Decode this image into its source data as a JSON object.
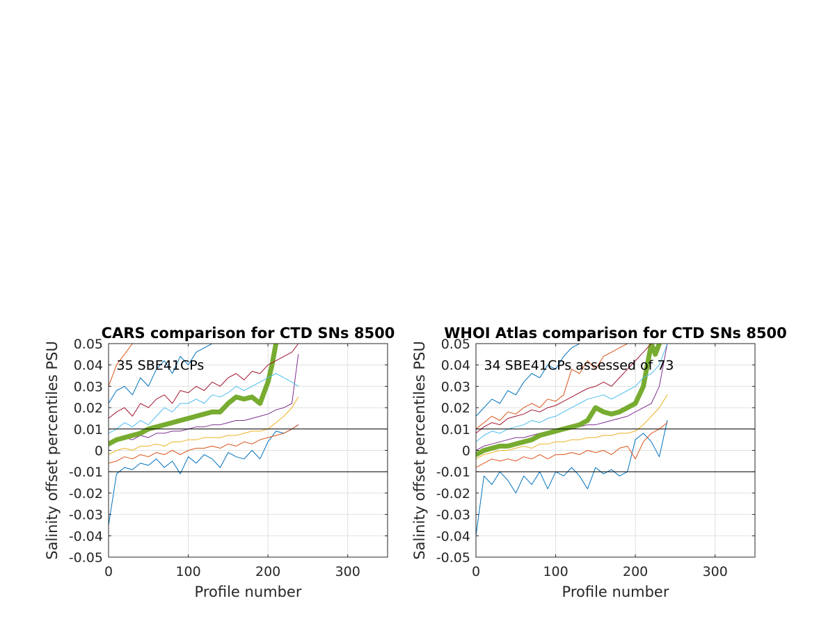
{
  "chart_data": [
    {
      "type": "line",
      "title": "CARS comparison for CTD SNs 8500",
      "xlabel": "Profile number",
      "ylabel": "Salinity offset percentiles PSU",
      "annotation": "35 SBE41CPs",
      "xlim": [
        0,
        350
      ],
      "ylim": [
        -0.05,
        0.05
      ],
      "xticks": [
        "0",
        "100",
        "200",
        "300"
      ],
      "yticks": [
        "-0.05",
        "-0.04",
        "-0.03",
        "-0.02",
        "-0.01",
        "0",
        "0.01",
        "0.02",
        "0.03",
        "0.04",
        "0.05"
      ],
      "grid": true,
      "reference_lines": [
        0.01,
        -0.01
      ],
      "series": [
        {
          "color": "#0072BD",
          "width": 1,
          "x": [
            0,
            10,
            20,
            30,
            40,
            50,
            60,
            70,
            80,
            90,
            100,
            110,
            120,
            130,
            140,
            150,
            160,
            170,
            180,
            190,
            200,
            210,
            220,
            230,
            238
          ],
          "y": [
            -0.035,
            -0.011,
            -0.008,
            -0.009,
            -0.006,
            -0.007,
            -0.004,
            -0.008,
            -0.005,
            -0.011,
            -0.003,
            -0.006,
            -0.002,
            -0.004,
            -0.008,
            -0.001,
            -0.003,
            -0.004,
            0.0,
            -0.004,
            0.004,
            0.009,
            0.008,
            0.01,
            0.012
          ]
        },
        {
          "color": "#D95319",
          "width": 1,
          "x": [
            0,
            10,
            20,
            30,
            40,
            50,
            60,
            70,
            80,
            90,
            100,
            110,
            120,
            130,
            140,
            150,
            160,
            170,
            180,
            190,
            200,
            210,
            220,
            230,
            238
          ],
          "y": [
            -0.006,
            -0.005,
            -0.003,
            -0.004,
            -0.002,
            -0.003,
            -0.001,
            -0.002,
            0.0,
            -0.002,
            0.0,
            0.001,
            0.001,
            0.002,
            0.001,
            0.003,
            0.002,
            0.004,
            0.003,
            0.005,
            0.006,
            0.007,
            0.008,
            0.01,
            0.012
          ]
        },
        {
          "color": "#EDB120",
          "width": 1,
          "x": [
            0,
            10,
            20,
            30,
            40,
            50,
            60,
            70,
            80,
            90,
            100,
            110,
            120,
            130,
            140,
            150,
            160,
            170,
            180,
            190,
            200,
            210,
            220,
            230,
            238
          ],
          "y": [
            -0.002,
            0.0,
            0.001,
            0.0,
            0.002,
            0.002,
            0.003,
            0.002,
            0.004,
            0.004,
            0.005,
            0.005,
            0.006,
            0.006,
            0.006,
            0.007,
            0.007,
            0.008,
            0.009,
            0.009,
            0.01,
            0.013,
            0.016,
            0.02,
            0.025
          ]
        },
        {
          "color": "#7E2F8E",
          "width": 1,
          "x": [
            0,
            10,
            20,
            30,
            40,
            50,
            60,
            70,
            80,
            90,
            100,
            110,
            120,
            130,
            140,
            150,
            160,
            170,
            180,
            190,
            200,
            210,
            220,
            230,
            238
          ],
          "y": [
            0.003,
            0.005,
            0.006,
            0.005,
            0.007,
            0.006,
            0.008,
            0.008,
            0.009,
            0.009,
            0.01,
            0.011,
            0.011,
            0.012,
            0.012,
            0.013,
            0.014,
            0.014,
            0.015,
            0.016,
            0.017,
            0.019,
            0.02,
            0.022,
            0.045
          ]
        },
        {
          "color": "#77AC30",
          "width": 7,
          "x": [
            0,
            10,
            20,
            30,
            40,
            50,
            60,
            70,
            80,
            90,
            100,
            110,
            120,
            130,
            140,
            150,
            160,
            170,
            180,
            190,
            200,
            205,
            210
          ],
          "y": [
            0.003,
            0.005,
            0.006,
            0.007,
            0.008,
            0.01,
            0.011,
            0.012,
            0.013,
            0.014,
            0.015,
            0.016,
            0.017,
            0.018,
            0.018,
            0.022,
            0.025,
            0.024,
            0.025,
            0.022,
            0.032,
            0.04,
            0.05
          ]
        },
        {
          "color": "#4DBEEE",
          "width": 1,
          "x": [
            0,
            10,
            20,
            30,
            40,
            50,
            60,
            70,
            80,
            90,
            100,
            110,
            120,
            130,
            140,
            150,
            160,
            170,
            180,
            190,
            200,
            210,
            220,
            230,
            238
          ],
          "y": [
            0.008,
            0.01,
            0.013,
            0.011,
            0.014,
            0.012,
            0.016,
            0.02,
            0.018,
            0.022,
            0.022,
            0.024,
            0.022,
            0.026,
            0.025,
            0.027,
            0.03,
            0.028,
            0.03,
            0.032,
            0.034,
            0.036,
            0.034,
            0.032,
            0.03
          ]
        },
        {
          "color": "#A2142F",
          "width": 1,
          "x": [
            0,
            10,
            20,
            30,
            40,
            50,
            60,
            70,
            80,
            90,
            100,
            110,
            120,
            130,
            140,
            150,
            160,
            170,
            180,
            190,
            200,
            210,
            220,
            230,
            238
          ],
          "y": [
            0.015,
            0.018,
            0.02,
            0.016,
            0.022,
            0.02,
            0.024,
            0.026,
            0.022,
            0.028,
            0.027,
            0.03,
            0.028,
            0.032,
            0.03,
            0.034,
            0.036,
            0.033,
            0.037,
            0.036,
            0.04,
            0.042,
            0.044,
            0.046,
            0.05
          ]
        },
        {
          "color": "#0072BD",
          "width": 1,
          "x": [
            0,
            10,
            20,
            30,
            40,
            50,
            60,
            70,
            80,
            90,
            100,
            110,
            120,
            130,
            140,
            150,
            160,
            170,
            180,
            190,
            200,
            210,
            220,
            230,
            238
          ],
          "y": [
            0.022,
            0.028,
            0.03,
            0.026,
            0.034,
            0.03,
            0.038,
            0.042,
            0.036,
            0.044,
            0.04,
            0.046,
            0.048,
            0.05,
            0.05,
            0.05,
            0.05,
            0.05,
            0.05,
            0.05,
            0.05,
            0.05,
            0.05,
            0.05,
            0.05
          ]
        },
        {
          "color": "#D95319",
          "width": 1,
          "x": [
            0,
            10,
            20,
            30,
            40,
            50,
            60,
            70,
            80,
            90,
            100,
            110,
            120,
            130,
            140,
            150,
            160,
            170,
            180,
            190,
            200,
            210,
            220,
            230,
            238
          ],
          "y": [
            0.03,
            0.04,
            0.045,
            0.05,
            0.05,
            0.05,
            0.05,
            0.05,
            0.05,
            0.05,
            0.05,
            0.05,
            0.05,
            0.05,
            0.05,
            0.05,
            0.05,
            0.05,
            0.05,
            0.05,
            0.05,
            0.05,
            0.05,
            0.05,
            0.05
          ]
        }
      ]
    },
    {
      "type": "line",
      "title": "WHOI Atlas comparison for CTD SNs 8500",
      "xlabel": "Profile number",
      "ylabel": "Salinity offset percentiles PSU",
      "annotation": "34 SBE41CPs assessed of 73",
      "xlim": [
        0,
        350
      ],
      "ylim": [
        -0.05,
        0.05
      ],
      "xticks": [
        "0",
        "100",
        "200",
        "300"
      ],
      "yticks": [
        "-0.05",
        "-0.04",
        "-0.03",
        "-0.02",
        "-0.01",
        "0",
        "0.01",
        "0.02",
        "0.03",
        "0.04",
        "0.05"
      ],
      "grid": true,
      "reference_lines": [
        0.01,
        -0.01
      ],
      "series": [
        {
          "color": "#0072BD",
          "width": 1,
          "x": [
            0,
            10,
            20,
            30,
            40,
            50,
            60,
            70,
            80,
            90,
            100,
            110,
            120,
            130,
            140,
            150,
            160,
            170,
            180,
            190,
            200,
            210,
            220,
            230,
            240
          ],
          "y": [
            -0.04,
            -0.012,
            -0.016,
            -0.01,
            -0.014,
            -0.02,
            -0.012,
            -0.016,
            -0.01,
            -0.018,
            -0.01,
            -0.012,
            -0.008,
            -0.012,
            -0.018,
            -0.008,
            -0.011,
            -0.009,
            -0.012,
            -0.01,
            0.005,
            0.008,
            0.004,
            -0.003,
            0.014
          ]
        },
        {
          "color": "#D95319",
          "width": 1,
          "x": [
            0,
            10,
            20,
            30,
            40,
            50,
            60,
            70,
            80,
            90,
            100,
            110,
            120,
            130,
            140,
            150,
            160,
            170,
            180,
            190,
            200,
            210,
            220,
            230,
            240
          ],
          "y": [
            -0.008,
            -0.006,
            -0.004,
            -0.005,
            -0.004,
            -0.005,
            -0.003,
            -0.004,
            -0.002,
            -0.004,
            -0.002,
            -0.002,
            -0.001,
            -0.002,
            0.0,
            -0.001,
            0.0,
            -0.002,
            0.001,
            0.002,
            -0.004,
            0.004,
            0.008,
            0.01,
            0.013
          ]
        },
        {
          "color": "#EDB120",
          "width": 1,
          "x": [
            0,
            10,
            20,
            30,
            40,
            50,
            60,
            70,
            80,
            90,
            100,
            110,
            120,
            130,
            140,
            150,
            160,
            170,
            180,
            190,
            200,
            210,
            220,
            230,
            240
          ],
          "y": [
            -0.004,
            -0.002,
            -0.001,
            0.0,
            0.0,
            0.001,
            0.002,
            0.001,
            0.003,
            0.003,
            0.004,
            0.004,
            0.005,
            0.005,
            0.006,
            0.006,
            0.007,
            0.007,
            0.008,
            0.008,
            0.009,
            0.012,
            0.016,
            0.02,
            0.026
          ]
        },
        {
          "color": "#7E2F8E",
          "width": 1,
          "x": [
            0,
            10,
            20,
            30,
            40,
            50,
            60,
            70,
            80,
            90,
            100,
            110,
            120,
            130,
            140,
            150,
            160,
            170,
            180,
            190,
            200,
            210,
            220,
            230,
            240
          ],
          "y": [
            0.0,
            0.002,
            0.003,
            0.004,
            0.005,
            0.006,
            0.006,
            0.007,
            0.008,
            0.008,
            0.009,
            0.01,
            0.01,
            0.011,
            0.012,
            0.012,
            0.013,
            0.014,
            0.015,
            0.016,
            0.018,
            0.02,
            0.022,
            0.03,
            0.05
          ]
        },
        {
          "color": "#77AC30",
          "width": 7,
          "x": [
            0,
            10,
            20,
            30,
            40,
            50,
            60,
            70,
            80,
            90,
            100,
            110,
            120,
            130,
            140,
            150,
            160,
            170,
            180,
            190,
            200,
            210,
            215,
            220,
            225,
            230
          ],
          "y": [
            -0.002,
            0.0,
            0.001,
            0.002,
            0.002,
            0.003,
            0.004,
            0.005,
            0.007,
            0.008,
            0.009,
            0.01,
            0.011,
            0.012,
            0.014,
            0.02,
            0.018,
            0.017,
            0.018,
            0.02,
            0.022,
            0.03,
            0.04,
            0.05,
            0.045,
            0.05
          ]
        },
        {
          "color": "#4DBEEE",
          "width": 1,
          "x": [
            0,
            10,
            20,
            30,
            40,
            50,
            60,
            70,
            80,
            90,
            100,
            110,
            120,
            130,
            140,
            150,
            160,
            170,
            180,
            190,
            200,
            210,
            220,
            230,
            240
          ],
          "y": [
            0.004,
            0.007,
            0.009,
            0.008,
            0.01,
            0.011,
            0.012,
            0.014,
            0.013,
            0.015,
            0.016,
            0.018,
            0.02,
            0.022,
            0.024,
            0.025,
            0.026,
            0.024,
            0.026,
            0.028,
            0.03,
            0.034,
            0.036,
            0.04,
            0.05
          ]
        },
        {
          "color": "#A2142F",
          "width": 1,
          "x": [
            0,
            10,
            20,
            30,
            40,
            50,
            60,
            70,
            80,
            90,
            100,
            110,
            120,
            130,
            140,
            150,
            160,
            170,
            180,
            190,
            200,
            210,
            220,
            230,
            240
          ],
          "y": [
            0.008,
            0.011,
            0.013,
            0.012,
            0.015,
            0.016,
            0.017,
            0.019,
            0.018,
            0.02,
            0.021,
            0.023,
            0.025,
            0.027,
            0.029,
            0.03,
            0.032,
            0.03,
            0.034,
            0.038,
            0.042,
            0.046,
            0.05,
            0.05,
            0.05
          ]
        },
        {
          "color": "#D95319",
          "width": 1,
          "x": [
            0,
            10,
            20,
            30,
            40,
            50,
            60,
            70,
            80,
            90,
            100,
            110,
            120,
            130,
            140,
            150,
            160,
            170,
            180,
            190,
            200,
            210,
            220,
            230,
            240
          ],
          "y": [
            0.01,
            0.013,
            0.016,
            0.014,
            0.018,
            0.017,
            0.02,
            0.022,
            0.02,
            0.024,
            0.023,
            0.026,
            0.038,
            0.036,
            0.042,
            0.038,
            0.044,
            0.046,
            0.048,
            0.05,
            0.05,
            0.05,
            0.05,
            0.05,
            0.05
          ]
        },
        {
          "color": "#0072BD",
          "width": 1,
          "x": [
            0,
            10,
            20,
            30,
            40,
            50,
            60,
            70,
            80,
            90,
            100,
            110,
            120,
            130,
            140,
            150,
            160,
            170,
            180,
            190,
            200,
            210,
            220,
            230,
            240
          ],
          "y": [
            0.016,
            0.02,
            0.024,
            0.022,
            0.028,
            0.026,
            0.032,
            0.036,
            0.034,
            0.04,
            0.038,
            0.044,
            0.048,
            0.05,
            0.05,
            0.05,
            0.05,
            0.05,
            0.05,
            0.05,
            0.05,
            0.05,
            0.05,
            0.05,
            0.05
          ]
        }
      ]
    }
  ]
}
